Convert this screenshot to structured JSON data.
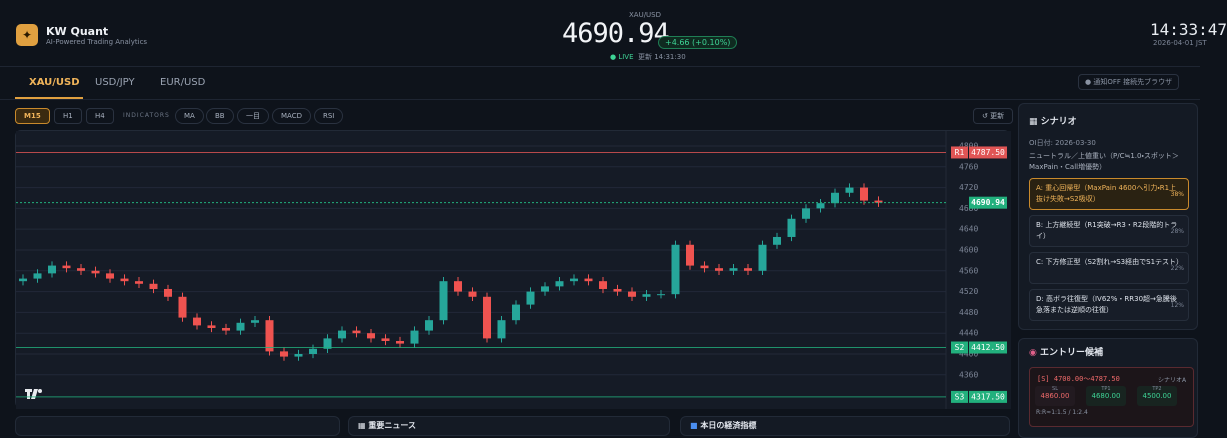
{
  "header": {
    "brand": "KW Quant",
    "tagline": "AI-Powered Trading Analytics",
    "symbol": "XAU/USD",
    "price": "4690.94",
    "change": "+4.66 (+0.10%)",
    "live": "LIVE",
    "updated": "更新 14:31:30",
    "clock": "14:33:47",
    "date": "2026-04-01 JST"
  },
  "tabs": [
    "XAU/USD",
    "USD/JPY",
    "EUR/USD"
  ],
  "actions": [
    "通知OFF",
    "接続先ブラウザ"
  ],
  "toolbar": {
    "timeframes": [
      "M15",
      "H1",
      "H4"
    ],
    "indicators_label": "INDICATORS",
    "indicators": [
      "MA",
      "BB",
      "一目",
      "MACD",
      "RSI"
    ],
    "refresh": "↺ 更新"
  },
  "chart_data": {
    "type": "candlestick",
    "open": [
      4540,
      4545,
      4555,
      4570,
      4565,
      4560,
      4555,
      4545,
      4540,
      4535,
      4525,
      4510,
      4470,
      4455,
      4450,
      4445,
      4460,
      4465,
      4405,
      4395,
      4400,
      4410,
      4430,
      4445,
      4440,
      4430,
      4425,
      4420,
      4445,
      4465,
      4540,
      4520,
      4510,
      4430,
      4465,
      4495,
      4520,
      4530,
      4540,
      4545,
      4540,
      4525,
      4520,
      4510,
      4515,
      4515,
      4610,
      4570,
      4565,
      4560,
      4565,
      4560,
      4610,
      4625,
      4660,
      4680,
      4690,
      4710,
      4720,
      4695
    ],
    "high": [
      4553,
      4563,
      4578,
      4578,
      4573,
      4568,
      4563,
      4553,
      4548,
      4543,
      4533,
      4518,
      4478,
      4463,
      4458,
      4468,
      4473,
      4473,
      4413,
      4408,
      4418,
      4438,
      4453,
      4453,
      4448,
      4438,
      4433,
      4453,
      4473,
      4548,
      4548,
      4528,
      4518,
      4473,
      4503,
      4528,
      4538,
      4548,
      4553,
      4553,
      4548,
      4533,
      4528,
      4523,
      4523,
      4618,
      4618,
      4578,
      4573,
      4573,
      4573,
      4618,
      4633,
      4668,
      4688,
      4698,
      4718,
      4728,
      4728,
      4703
    ],
    "low": [
      4532,
      4537,
      4547,
      4557,
      4552,
      4547,
      4537,
      4532,
      4527,
      4517,
      4502,
      4462,
      4447,
      4442,
      4437,
      4437,
      4452,
      4397,
      4387,
      4387,
      4392,
      4402,
      4422,
      4432,
      4422,
      4417,
      4412,
      4412,
      4437,
      4457,
      4512,
      4502,
      4422,
      4422,
      4457,
      4487,
      4512,
      4522,
      4532,
      4532,
      4517,
      4512,
      4502,
      4502,
      4507,
      4507,
      4562,
      4557,
      4552,
      4552,
      4552,
      4552,
      4602,
      4617,
      4652,
      4672,
      4682,
      4702,
      4687,
      4682.94
    ],
    "close": [
      4545,
      4555,
      4570,
      4565,
      4560,
      4555,
      4545,
      4540,
      4535,
      4525,
      4510,
      4470,
      4455,
      4450,
      4445,
      4460,
      4465,
      4405,
      4395,
      4400,
      4410,
      4430,
      4445,
      4440,
      4430,
      4425,
      4420,
      4445,
      4465,
      4540,
      4520,
      4510,
      4430,
      4465,
      4495,
      4520,
      4530,
      4540,
      4545,
      4540,
      4525,
      4520,
      4510,
      4515,
      4515,
      4610,
      4570,
      4565,
      4560,
      4565,
      4560,
      4610,
      4625,
      4660,
      4680,
      4690,
      4710,
      4720,
      4695,
      4690.94
    ],
    "up_color": "#26a69a",
    "down_color": "#ef5350",
    "ylim": [
      4300,
      4823
    ],
    "yticks": [
      4360,
      4400,
      4440,
      4480,
      4520,
      4560,
      4600,
      4640,
      4680,
      4720,
      4760,
      4800
    ],
    "grid": true,
    "levels": [
      {
        "name": "R1",
        "value": 4787.5,
        "label": "4787.50",
        "color": "#e05555"
      },
      {
        "name": "S2",
        "value": 4412.5,
        "label": "4412.50",
        "color": "#22b07d"
      },
      {
        "name": "S3",
        "value": 4317.5,
        "label": "4317.50",
        "color": "#22b07d"
      }
    ],
    "current": {
      "value": 4690.94,
      "color": "#22b07d"
    }
  },
  "scenario": {
    "title": "シナリオ",
    "oi_date": "OI日付: 2026-03-30",
    "bias": "ニュートラル／上値重い（P/C≒1.0・スポット＞MaxPain・Call増優勢）",
    "items": [
      {
        "text": "A: 重心回帰型（MaxPain 4600へ引力・R1上抜け失敗→S2吸収）",
        "prob": "38%"
      },
      {
        "text": "B: 上方継続型（R1突破→R3・R2段階的トライ）",
        "prob": "28%"
      },
      {
        "text": "C: 下方修正型（S2割れ→S3経由でS1テスト）",
        "prob": "22%"
      },
      {
        "text": "D: 高ボラ往復型（IV62%・RR30超→急騰後急落または逆順の往復）",
        "prob": "12%"
      }
    ]
  },
  "entry": {
    "title": "エントリー候補",
    "range": "[S] 4700.00〜4787.50",
    "scenario": "シナリオA",
    "levels": [
      {
        "label": "SL",
        "value": "4860.00"
      },
      {
        "label": "TP1",
        "value": "4680.00"
      },
      {
        "label": "TP2",
        "value": "4500.00"
      }
    ],
    "rr": "R:R≈1:1.5 / 1:2.4"
  },
  "panels": [
    "重要ニュース",
    "本日の経済指標"
  ]
}
